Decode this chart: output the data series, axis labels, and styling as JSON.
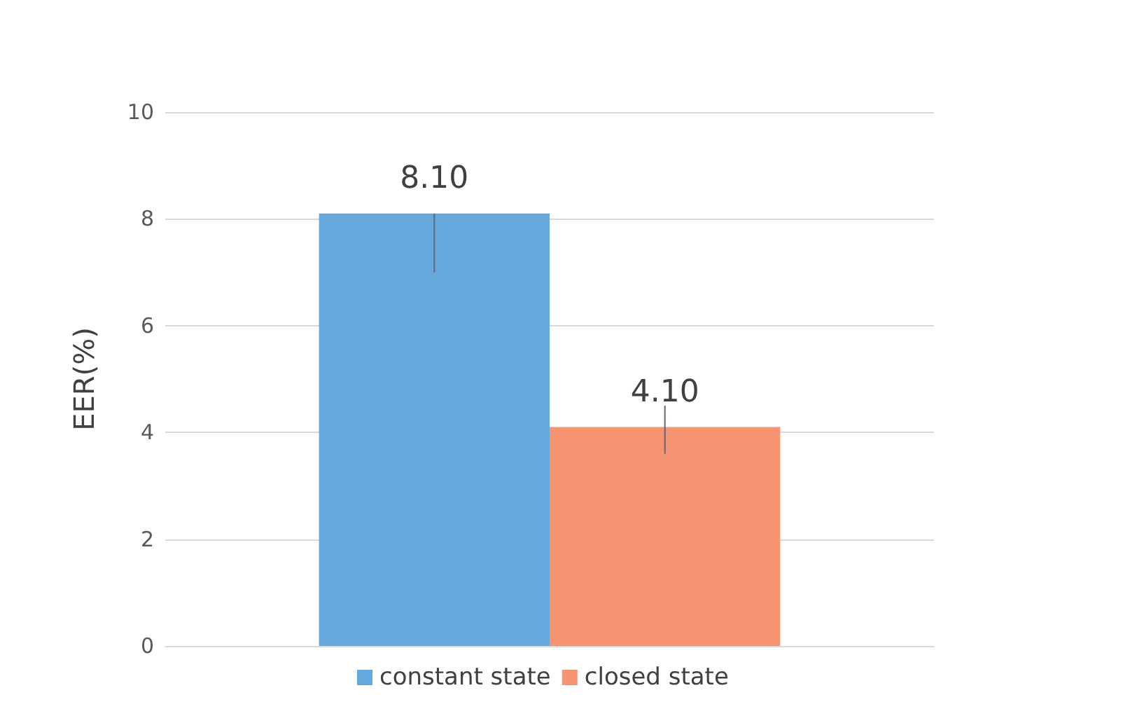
{
  "chart_data": {
    "type": "bar",
    "ylabel": "EER(%)",
    "categories": [
      null
    ],
    "series": [
      {
        "name": "constant state",
        "color": "#66a8db",
        "values": [
          8.1
        ],
        "value_labels": [
          "8.10"
        ],
        "errors": [
          [
            7.0,
            8.1
          ]
        ]
      },
      {
        "name": "closed state",
        "color": "#f69472",
        "values": [
          4.1
        ],
        "value_labels": [
          "4.10"
        ],
        "errors": [
          [
            3.6,
            4.5
          ]
        ]
      }
    ],
    "ylim": [
      0,
      10
    ],
    "yticks": [
      0,
      2,
      4,
      6,
      8,
      10
    ],
    "grid": "y",
    "legend": "bottom"
  }
}
